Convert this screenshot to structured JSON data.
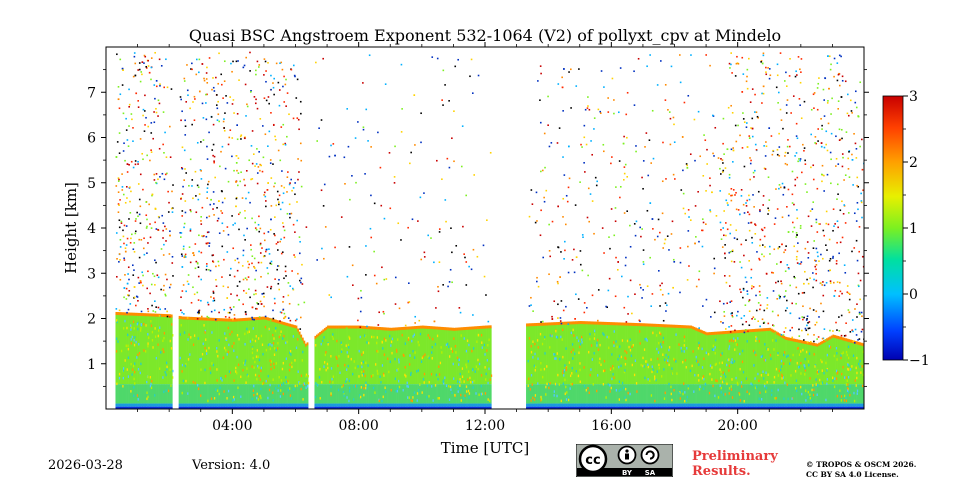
{
  "chart_data": {
    "type": "heatmap",
    "title": "Quasi BSC Angstroem Exponent 532-1064 (V2) of pollyxt_cpv at Mindelo",
    "xlabel": "Time [UTC]",
    "ylabel": "Height [km]",
    "x_range_hours": [
      0,
      24
    ],
    "y_range_km": [
      0,
      8
    ],
    "x_ticks": [
      {
        "value": 4,
        "label": "04:00"
      },
      {
        "value": 8,
        "label": "08:00"
      },
      {
        "value": 12,
        "label": "12:00"
      },
      {
        "value": 16,
        "label": "16:00"
      },
      {
        "value": 20,
        "label": "20:00"
      }
    ],
    "y_ticks": [
      {
        "value": 1,
        "label": "1"
      },
      {
        "value": 2,
        "label": "2"
      },
      {
        "value": 3,
        "label": "3"
      },
      {
        "value": 4,
        "label": "4"
      },
      {
        "value": 5,
        "label": "5"
      },
      {
        "value": 6,
        "label": "6"
      },
      {
        "value": 7,
        "label": "7"
      }
    ],
    "colorbar": {
      "range": [
        -1,
        3
      ],
      "colormap": "jet",
      "ticks": [
        {
          "value": 3,
          "label": "3"
        },
        {
          "value": 2,
          "label": "2"
        },
        {
          "value": 1,
          "label": "1"
        },
        {
          "value": 0,
          "label": "0"
        },
        {
          "value": -1,
          "label": "−1"
        }
      ]
    },
    "data_gaps_hours": [
      [
        2.1,
        2.3
      ],
      [
        6.4,
        6.6
      ],
      [
        12.2,
        13.3
      ]
    ],
    "boundary_layer_top_km": [
      [
        0.3,
        2.1
      ],
      [
        2.0,
        2.05
      ],
      [
        2.4,
        2.0
      ],
      [
        4.0,
        1.95
      ],
      [
        5.0,
        2.0
      ],
      [
        6.0,
        1.8
      ],
      [
        6.3,
        1.4
      ],
      [
        7.0,
        1.8
      ],
      [
        8.0,
        1.8
      ],
      [
        9.0,
        1.75
      ],
      [
        10.0,
        1.8
      ],
      [
        11.0,
        1.75
      ],
      [
        12.0,
        1.8
      ],
      [
        13.4,
        1.85
      ],
      [
        15.0,
        1.9
      ],
      [
        17.0,
        1.85
      ],
      [
        18.5,
        1.8
      ],
      [
        19.0,
        1.65
      ],
      [
        20.0,
        1.7
      ],
      [
        21.0,
        1.75
      ],
      [
        21.5,
        1.55
      ],
      [
        22.5,
        1.4
      ],
      [
        23.0,
        1.6
      ],
      [
        24.0,
        1.4
      ]
    ],
    "colors": {
      "boundary_layer": "#7ce82a",
      "top_edge": "#ff8c00",
      "surface": "#0a2bd8"
    }
  },
  "footer": {
    "date": "2026-03-28",
    "version": "Version: 4.0",
    "preliminary_line1": "Preliminary",
    "preliminary_line2": "Results.",
    "copyright_line1": "© TROPOS & OSCM 2026.",
    "copyright_line2": "CC BY SA 4.0 License.",
    "cc_labels": [
      "BY",
      "SA"
    ]
  }
}
